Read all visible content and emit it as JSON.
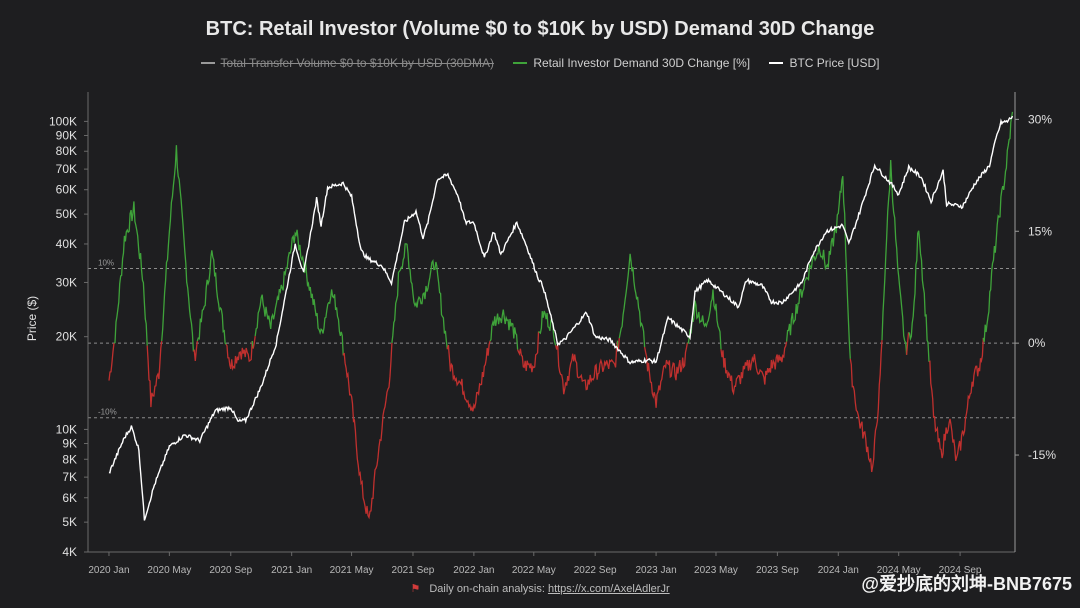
{
  "chart_data": {
    "type": "line",
    "title": "BTC: Retail Investor (Volume $0 to $10K by USD) Demand 30D Change",
    "legend": [
      {
        "name": "Total Transfer Volume $0 to $10K by USD (30DMA)",
        "color": "#9a9a9a",
        "hidden": true
      },
      {
        "name": "Retail Investor Demand 30D Change [%]",
        "color": "#3fa33a",
        "hidden": false
      },
      {
        "name": "BTC Price [USD]",
        "color": "#ffffff",
        "hidden": false
      }
    ],
    "legend_position": "top-center",
    "ylabel_left": "Price ($)",
    "y_left_scale": "log",
    "y_left_range": [
      4000,
      120000
    ],
    "y_left_ticks": [
      {
        "v": 100000,
        "label": "100K"
      },
      {
        "v": 90000,
        "label": "90K"
      },
      {
        "v": 80000,
        "label": "80K"
      },
      {
        "v": 70000,
        "label": "70K"
      },
      {
        "v": 60000,
        "label": "60K"
      },
      {
        "v": 50000,
        "label": "50K"
      },
      {
        "v": 40000,
        "label": "40K"
      },
      {
        "v": 30000,
        "label": "30K"
      },
      {
        "v": 20000,
        "label": "20K"
      },
      {
        "v": 10000,
        "label": "10K"
      },
      {
        "v": 9000,
        "label": "9K"
      },
      {
        "v": 8000,
        "label": "8K"
      },
      {
        "v": 7000,
        "label": "7K"
      },
      {
        "v": 6000,
        "label": "6K"
      },
      {
        "v": 5000,
        "label": "5K"
      },
      {
        "v": 4000,
        "label": "4K"
      }
    ],
    "y_right_range": [
      -28,
      33
    ],
    "y_right_ticks": [
      {
        "v": 30,
        "label": "30%"
      },
      {
        "v": 15,
        "label": "15%"
      },
      {
        "v": 0,
        "label": "0%"
      },
      {
        "v": -15,
        "label": "-15%"
      }
    ],
    "reference_lines": [
      {
        "v": 10,
        "label": "10%"
      },
      {
        "v": 0,
        "label": ""
      },
      {
        "v": -10,
        "label": "-10%"
      }
    ],
    "x_range": [
      "2019-11-20",
      "2024-12-20"
    ],
    "x_ticks": [
      {
        "t": "2020-01-01",
        "label": "2020 Jan"
      },
      {
        "t": "2020-05-01",
        "label": "2020 May"
      },
      {
        "t": "2020-09-01",
        "label": "2020 Sep"
      },
      {
        "t": "2021-01-01",
        "label": "2021 Jan"
      },
      {
        "t": "2021-05-01",
        "label": "2021 May"
      },
      {
        "t": "2021-09-01",
        "label": "2021 Sep"
      },
      {
        "t": "2022-01-01",
        "label": "2022 Jan"
      },
      {
        "t": "2022-05-01",
        "label": "2022 May"
      },
      {
        "t": "2022-09-01",
        "label": "2022 Sep"
      },
      {
        "t": "2023-01-01",
        "label": "2023 Jan"
      },
      {
        "t": "2023-05-01",
        "label": "2023 May"
      },
      {
        "t": "2023-09-01",
        "label": "2023 Sep"
      },
      {
        "t": "2024-01-01",
        "label": "2024 Jan"
      },
      {
        "t": "2024-05-01",
        "label": "2024 May"
      },
      {
        "t": "2024-09-01",
        "label": "2024 Sep"
      }
    ],
    "series": [
      {
        "name": "BTC Price [USD]",
        "axis": "left",
        "color": "#ffffff",
        "points": [
          [
            "2020-01-01",
            7200
          ],
          [
            "2020-02-01",
            9400
          ],
          [
            "2020-02-15",
            10200
          ],
          [
            "2020-03-01",
            8600
          ],
          [
            "2020-03-12",
            5100
          ],
          [
            "2020-04-01",
            6600
          ],
          [
            "2020-05-01",
            8800
          ],
          [
            "2020-06-01",
            9600
          ],
          [
            "2020-07-01",
            9200
          ],
          [
            "2020-08-01",
            11500
          ],
          [
            "2020-09-01",
            11800
          ],
          [
            "2020-09-15",
            10600
          ],
          [
            "2020-10-01",
            10700
          ],
          [
            "2020-11-01",
            13800
          ],
          [
            "2020-12-01",
            19000
          ],
          [
            "2021-01-08",
            40000
          ],
          [
            "2021-01-25",
            32000
          ],
          [
            "2021-02-20",
            56000
          ],
          [
            "2021-03-01",
            46000
          ],
          [
            "2021-03-14",
            61000
          ],
          [
            "2021-04-14",
            63000
          ],
          [
            "2021-05-01",
            57000
          ],
          [
            "2021-05-20",
            38000
          ],
          [
            "2021-06-01",
            36000
          ],
          [
            "2021-07-01",
            34000
          ],
          [
            "2021-07-20",
            30000
          ],
          [
            "2021-08-15",
            47000
          ],
          [
            "2021-09-07",
            51000
          ],
          [
            "2021-09-21",
            42000
          ],
          [
            "2021-10-01",
            47000
          ],
          [
            "2021-10-20",
            65000
          ],
          [
            "2021-11-10",
            67000
          ],
          [
            "2021-12-01",
            57000
          ],
          [
            "2021-12-15",
            47000
          ],
          [
            "2022-01-01",
            47000
          ],
          [
            "2022-01-22",
            36000
          ],
          [
            "2022-02-10",
            44000
          ],
          [
            "2022-02-24",
            37000
          ],
          [
            "2022-03-28",
            47000
          ],
          [
            "2022-04-15",
            40000
          ],
          [
            "2022-05-10",
            31000
          ],
          [
            "2022-05-20",
            29000
          ],
          [
            "2022-06-18",
            19000
          ],
          [
            "2022-07-01",
            19500
          ],
          [
            "2022-08-15",
            24000
          ],
          [
            "2022-09-01",
            20000
          ],
          [
            "2022-10-01",
            19500
          ],
          [
            "2022-11-10",
            16500
          ],
          [
            "2022-12-15",
            16800
          ],
          [
            "2023-01-01",
            16600
          ],
          [
            "2023-01-25",
            23000
          ],
          [
            "2023-03-10",
            20000
          ],
          [
            "2023-03-20",
            28000
          ],
          [
            "2023-04-14",
            30500
          ],
          [
            "2023-05-01",
            29000
          ],
          [
            "2023-06-15",
            25000
          ],
          [
            "2023-07-01",
            30500
          ],
          [
            "2023-08-01",
            29300
          ],
          [
            "2023-08-20",
            26000
          ],
          [
            "2023-09-10",
            25800
          ],
          [
            "2023-10-20",
            30000
          ],
          [
            "2023-11-10",
            37000
          ],
          [
            "2023-12-08",
            44000
          ],
          [
            "2024-01-10",
            46000
          ],
          [
            "2024-01-22",
            40000
          ],
          [
            "2024-02-15",
            52000
          ],
          [
            "2024-03-14",
            72000
          ],
          [
            "2024-04-15",
            63000
          ],
          [
            "2024-05-01",
            58000
          ],
          [
            "2024-05-21",
            71000
          ],
          [
            "2024-06-15",
            66000
          ],
          [
            "2024-07-05",
            55000
          ],
          [
            "2024-07-29",
            69000
          ],
          [
            "2024-08-05",
            54000
          ],
          [
            "2024-09-06",
            53000
          ],
          [
            "2024-10-01",
            63000
          ],
          [
            "2024-10-30",
            72000
          ],
          [
            "2024-11-12",
            88000
          ],
          [
            "2024-11-22",
            99000
          ],
          [
            "2024-12-05",
            100000
          ],
          [
            "2024-12-15",
            104000
          ]
        ]
      },
      {
        "name": "Retail Investor Demand 30D Change [%]",
        "axis": "right",
        "color_positive": "#3fa33a",
        "color_negative": "#c0302e",
        "points": [
          [
            "2020-01-01",
            -5
          ],
          [
            "2020-01-15",
            2
          ],
          [
            "2020-02-01",
            14
          ],
          [
            "2020-02-20",
            18
          ],
          [
            "2020-03-10",
            8
          ],
          [
            "2020-03-25",
            -8
          ],
          [
            "2020-04-10",
            -4
          ],
          [
            "2020-05-01",
            15
          ],
          [
            "2020-05-15",
            26
          ],
          [
            "2020-06-01",
            12
          ],
          [
            "2020-06-20",
            -2
          ],
          [
            "2020-07-10",
            5
          ],
          [
            "2020-07-25",
            12
          ],
          [
            "2020-08-15",
            3
          ],
          [
            "2020-09-01",
            -3
          ],
          [
            "2020-09-20",
            -1
          ],
          [
            "2020-10-10",
            -2
          ],
          [
            "2020-11-01",
            6
          ],
          [
            "2020-11-20",
            2
          ],
          [
            "2020-12-15",
            8
          ],
          [
            "2021-01-08",
            15
          ],
          [
            "2021-01-25",
            11
          ],
          [
            "2021-02-15",
            5
          ],
          [
            "2021-03-01",
            1
          ],
          [
            "2021-03-20",
            7
          ],
          [
            "2021-04-01",
            5
          ],
          [
            "2021-04-20",
            -3
          ],
          [
            "2021-05-01",
            -8
          ],
          [
            "2021-05-20",
            -19
          ],
          [
            "2021-06-05",
            -24
          ],
          [
            "2021-06-25",
            -14
          ],
          [
            "2021-07-15",
            -5
          ],
          [
            "2021-08-05",
            10
          ],
          [
            "2021-08-20",
            13
          ],
          [
            "2021-09-05",
            5
          ],
          [
            "2021-09-25",
            7
          ],
          [
            "2021-10-15",
            11
          ],
          [
            "2021-10-30",
            4
          ],
          [
            "2021-11-15",
            -3
          ],
          [
            "2021-12-10",
            -6
          ],
          [
            "2022-01-01",
            -9
          ],
          [
            "2022-01-20",
            -4
          ],
          [
            "2022-02-10",
            3
          ],
          [
            "2022-03-01",
            4
          ],
          [
            "2022-03-20",
            2
          ],
          [
            "2022-04-10",
            -3
          ],
          [
            "2022-05-01",
            -3
          ],
          [
            "2022-05-20",
            4
          ],
          [
            "2022-06-10",
            2
          ],
          [
            "2022-06-30",
            -6
          ],
          [
            "2022-07-20",
            -2
          ],
          [
            "2022-08-10",
            -6
          ],
          [
            "2022-09-01",
            -4
          ],
          [
            "2022-09-20",
            -3
          ],
          [
            "2022-10-10",
            -3
          ],
          [
            "2022-10-25",
            3
          ],
          [
            "2022-11-10",
            12
          ],
          [
            "2022-11-25",
            6
          ],
          [
            "2022-12-15",
            -3
          ],
          [
            "2023-01-01",
            -8
          ],
          [
            "2023-01-20",
            -3
          ],
          [
            "2023-02-10",
            -4
          ],
          [
            "2023-03-01",
            -2
          ],
          [
            "2023-03-20",
            5
          ],
          [
            "2023-04-10",
            2
          ],
          [
            "2023-04-25",
            7
          ],
          [
            "2023-05-15",
            -2
          ],
          [
            "2023-06-05",
            -6
          ],
          [
            "2023-06-25",
            -4
          ],
          [
            "2023-07-15",
            -2
          ],
          [
            "2023-08-05",
            -5
          ],
          [
            "2023-08-20",
            -3
          ],
          [
            "2023-09-10",
            -2
          ],
          [
            "2023-10-01",
            3
          ],
          [
            "2023-10-20",
            7
          ],
          [
            "2023-11-10",
            11
          ],
          [
            "2023-11-25",
            13
          ],
          [
            "2023-12-10",
            10
          ],
          [
            "2024-01-01",
            17
          ],
          [
            "2024-01-10",
            23
          ],
          [
            "2024-01-25",
            -3
          ],
          [
            "2024-02-10",
            -10
          ],
          [
            "2024-02-25",
            -13
          ],
          [
            "2024-03-10",
            -17
          ],
          [
            "2024-03-25",
            -5
          ],
          [
            "2024-04-05",
            12
          ],
          [
            "2024-04-15",
            24
          ],
          [
            "2024-05-01",
            8
          ],
          [
            "2024-05-15",
            -1
          ],
          [
            "2024-05-30",
            3
          ],
          [
            "2024-06-10",
            16
          ],
          [
            "2024-06-25",
            3
          ],
          [
            "2024-07-10",
            -10
          ],
          [
            "2024-07-25",
            -15
          ],
          [
            "2024-08-10",
            -10
          ],
          [
            "2024-08-25",
            -16
          ],
          [
            "2024-09-10",
            -11
          ],
          [
            "2024-09-25",
            -5
          ],
          [
            "2024-10-10",
            -3
          ],
          [
            "2024-10-25",
            3
          ],
          [
            "2024-11-05",
            10
          ],
          [
            "2024-11-20",
            18
          ],
          [
            "2024-12-01",
            23
          ],
          [
            "2024-12-10",
            28
          ],
          [
            "2024-12-15",
            31
          ]
        ]
      }
    ]
  },
  "footer": {
    "prefix": "Daily on-chain analysis: ",
    "link": "https://x.com/AxelAdlerJr"
  },
  "watermark": {
    "handle": "@爱抄底的刘坤-BNB7675"
  }
}
